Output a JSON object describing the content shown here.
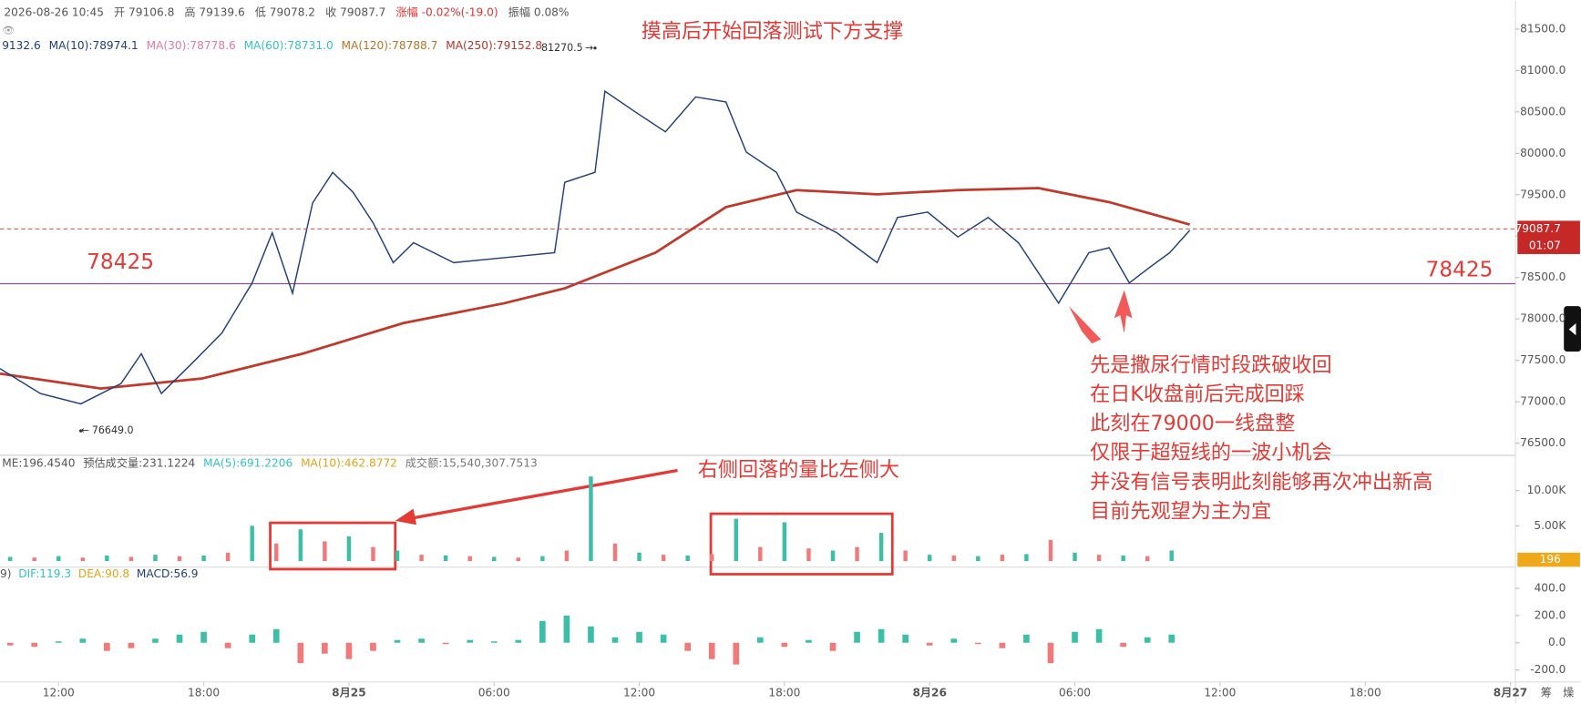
{
  "header": {
    "items": [
      "2026-08-26 10:45",
      "开 79106.8",
      "高 79139.6",
      "低 79078.2",
      "收 79087.7",
      "涨幅 -0.02%(-19.0)",
      "振幅 0.08%"
    ]
  },
  "ma_legend": [
    {
      "text": "9132.6",
      "color": "#1f3f7a"
    },
    {
      "text": "MA(10):78974.1",
      "color": "#1f3f7a"
    },
    {
      "text": "MA(30):78778.6",
      "color": "#e07aa8"
    },
    {
      "text": "MA(60):78731.0",
      "color": "#35c3c0"
    },
    {
      "text": "MA(120):78788.7",
      "color": "#b8752a"
    },
    {
      "text": "MA(250):79152.8",
      "color": "#b8352a"
    }
  ],
  "xaxis": {
    "xlim": [
      -2.42,
      60.21
    ],
    "xticks": [
      {
        "value": 0,
        "label": "12:00"
      },
      {
        "value": 6,
        "label": "18:00"
      },
      {
        "value": 12,
        "label": "8月25"
      },
      {
        "value": 18,
        "label": "06:00"
      },
      {
        "value": 24,
        "label": "12:00"
      },
      {
        "value": 30,
        "label": "18:00"
      },
      {
        "value": 36,
        "label": "8月26"
      },
      {
        "value": 42,
        "label": "06:00"
      },
      {
        "value": 48,
        "label": "12:00"
      },
      {
        "value": 54,
        "label": "18:00"
      },
      {
        "value": 60,
        "label": "8月27"
      }
    ]
  },
  "price": {
    "ylim": [
      76366,
      81841
    ],
    "yticks": [
      {
        "value": 76500,
        "label": "76500.0"
      },
      {
        "value": 77000,
        "label": "77000.0"
      },
      {
        "value": 77500,
        "label": "77500.0"
      },
      {
        "value": 78000,
        "label": "78000.0"
      },
      {
        "value": 78500,
        "label": "78500.0"
      },
      {
        "value": 79000,
        "label": "79000.0"
      },
      {
        "value": 79500,
        "label": "79500.0"
      },
      {
        "value": 80000,
        "label": "80000.0"
      },
      {
        "value": 80500,
        "label": "80500.0"
      },
      {
        "value": 81000,
        "label": "81000.0"
      },
      {
        "value": 81500,
        "label": "81500.0"
      }
    ],
    "close": {
      "color": "#1f3f7a",
      "x": [
        -2.42,
        -0.75,
        0.92,
        2.58,
        3.42,
        4.25,
        5.5,
        6.75,
        8,
        8.83,
        9.67,
        10.5,
        11.33,
        12.17,
        13,
        13.83,
        14.67,
        16.33,
        18.42,
        20.5,
        20.92,
        22.17,
        22.58,
        23.83,
        25.08,
        26.33,
        27.58,
        28.42,
        29.67,
        30.5,
        32.17,
        33.83,
        34.67,
        35.92,
        37.17,
        38.42,
        39.67,
        41.33,
        42.58,
        43.42,
        44.25,
        45.08,
        45.92,
        46.75
      ],
      "values": [
        77400,
        77100,
        76975,
        77220,
        77580,
        77100,
        77460,
        77830,
        78435,
        79040,
        78310,
        79400,
        79770,
        79530,
        79160,
        78680,
        78920,
        78680,
        78740,
        78800,
        79650,
        79770,
        80750,
        80500,
        80260,
        80680,
        80620,
        80015,
        79770,
        79290,
        79040,
        78680,
        79225,
        79290,
        78990,
        79225,
        78920,
        78190,
        78800,
        78860,
        78435,
        78620,
        78800,
        79070
      ]
    },
    "ma250": {
      "color": "#c0392b",
      "x": [
        -2.42,
        1.75,
        5.92,
        10.08,
        14.25,
        18.42,
        20.92,
        24.67,
        27.58,
        30.5,
        33.83,
        37.17,
        40.5,
        43.42,
        46.75
      ],
      "values": [
        77340,
        77160,
        77280,
        77580,
        77950,
        78190,
        78370,
        78800,
        79350,
        79555,
        79505,
        79555,
        79580,
        79410,
        79140
      ]
    },
    "support": {
      "value": 78425,
      "label": "78425",
      "color": "#9b3fb5"
    },
    "high": {
      "x": 22.17,
      "value": 81270.5,
      "label": "81270.5"
    },
    "low": {
      "x": 0.92,
      "value": 76649,
      "label": "76649.0"
    },
    "last": {
      "value": 79087.7,
      "label": "79087.7",
      "countdown": "01:07"
    }
  },
  "volume": {
    "legend": [
      "ME:196.4540",
      "预估成交量:231.1224",
      "MA(5):691.2206",
      "MA(10):462.8772",
      "成交额:15,540,307.7513"
    ],
    "ylim": [
      -571,
      14857
    ],
    "yticks": [
      {
        "value": 5000,
        "label": "5.00K"
      },
      {
        "value": 10000,
        "label": "10.00K"
      }
    ],
    "x": [
      -2,
      -1,
      0,
      1,
      2,
      3,
      4,
      5,
      6,
      7,
      8,
      9,
      10,
      11,
      12,
      13,
      14,
      15,
      16,
      17,
      18,
      19,
      20,
      21,
      22,
      23,
      24,
      25,
      26,
      27,
      28,
      29,
      30,
      31,
      32,
      33,
      34,
      35,
      36,
      37,
      38,
      39,
      40,
      41,
      42,
      43,
      44,
      45,
      46
    ],
    "values": [
      600,
      500,
      700,
      500,
      800,
      600,
      900,
      700,
      800,
      1200,
      5000,
      2500,
      4500,
      2800,
      3500,
      2000,
      1500,
      900,
      800,
      700,
      600,
      500,
      700,
      1500,
      12000,
      2500,
      1200,
      900,
      800,
      1000,
      6000,
      2000,
      5500,
      1800,
      1500,
      2000,
      4000,
      1500,
      900,
      800,
      700,
      900,
      1000,
      3000,
      1200,
      900,
      800,
      700,
      1500
    ],
    "last": {
      "value": 196,
      "label": "196"
    }
  },
  "macd": {
    "legend": [
      "9)",
      "DIF:119.3",
      "DEA:90.8",
      "MACD:56.9"
    ],
    "ylim": [
      -296,
      533
    ],
    "yticks": [
      {
        "value": -200,
        "label": "-200.0"
      },
      {
        "value": 0,
        "label": "0.0"
      },
      {
        "value": 200,
        "label": "200.0"
      },
      {
        "value": 400,
        "label": "400.0"
      }
    ],
    "x": [
      -2,
      -1,
      0,
      1,
      2,
      3,
      4,
      5,
      6,
      7,
      8,
      9,
      10,
      11,
      12,
      13,
      14,
      15,
      16,
      17,
      18,
      19,
      20,
      21,
      22,
      23,
      24,
      25,
      26,
      27,
      28,
      29,
      30,
      31,
      32,
      33,
      34,
      35,
      36,
      37,
      38,
      39,
      40,
      41,
      42,
      43,
      44,
      45,
      46
    ],
    "values": [
      -20,
      -30,
      10,
      30,
      -60,
      -40,
      30,
      60,
      80,
      -40,
      60,
      100,
      -150,
      -80,
      -120,
      -60,
      20,
      30,
      -10,
      20,
      10,
      20,
      160,
      200,
      120,
      40,
      80,
      60,
      -60,
      -120,
      -160,
      40,
      -30,
      20,
      -60,
      80,
      100,
      60,
      -20,
      30,
      -10,
      -40,
      60,
      -150,
      80,
      100,
      -30,
      40,
      60
    ]
  },
  "annotations": {
    "title": "摸高后开始回落测试下方支撑",
    "volume_note": "右侧回落的量比左侧大",
    "notes": [
      "先是撒尿行情时段跌破收回",
      "在日K收盘前后完成回踩",
      "此刻在79000一线盘整",
      "仅限于超短线的一波小机会",
      "并没有信号表明此刻能够再次冲出新高",
      "目前先观望为主为宜"
    ]
  },
  "footer": {
    "icons": [
      "筹",
      "燥"
    ]
  }
}
